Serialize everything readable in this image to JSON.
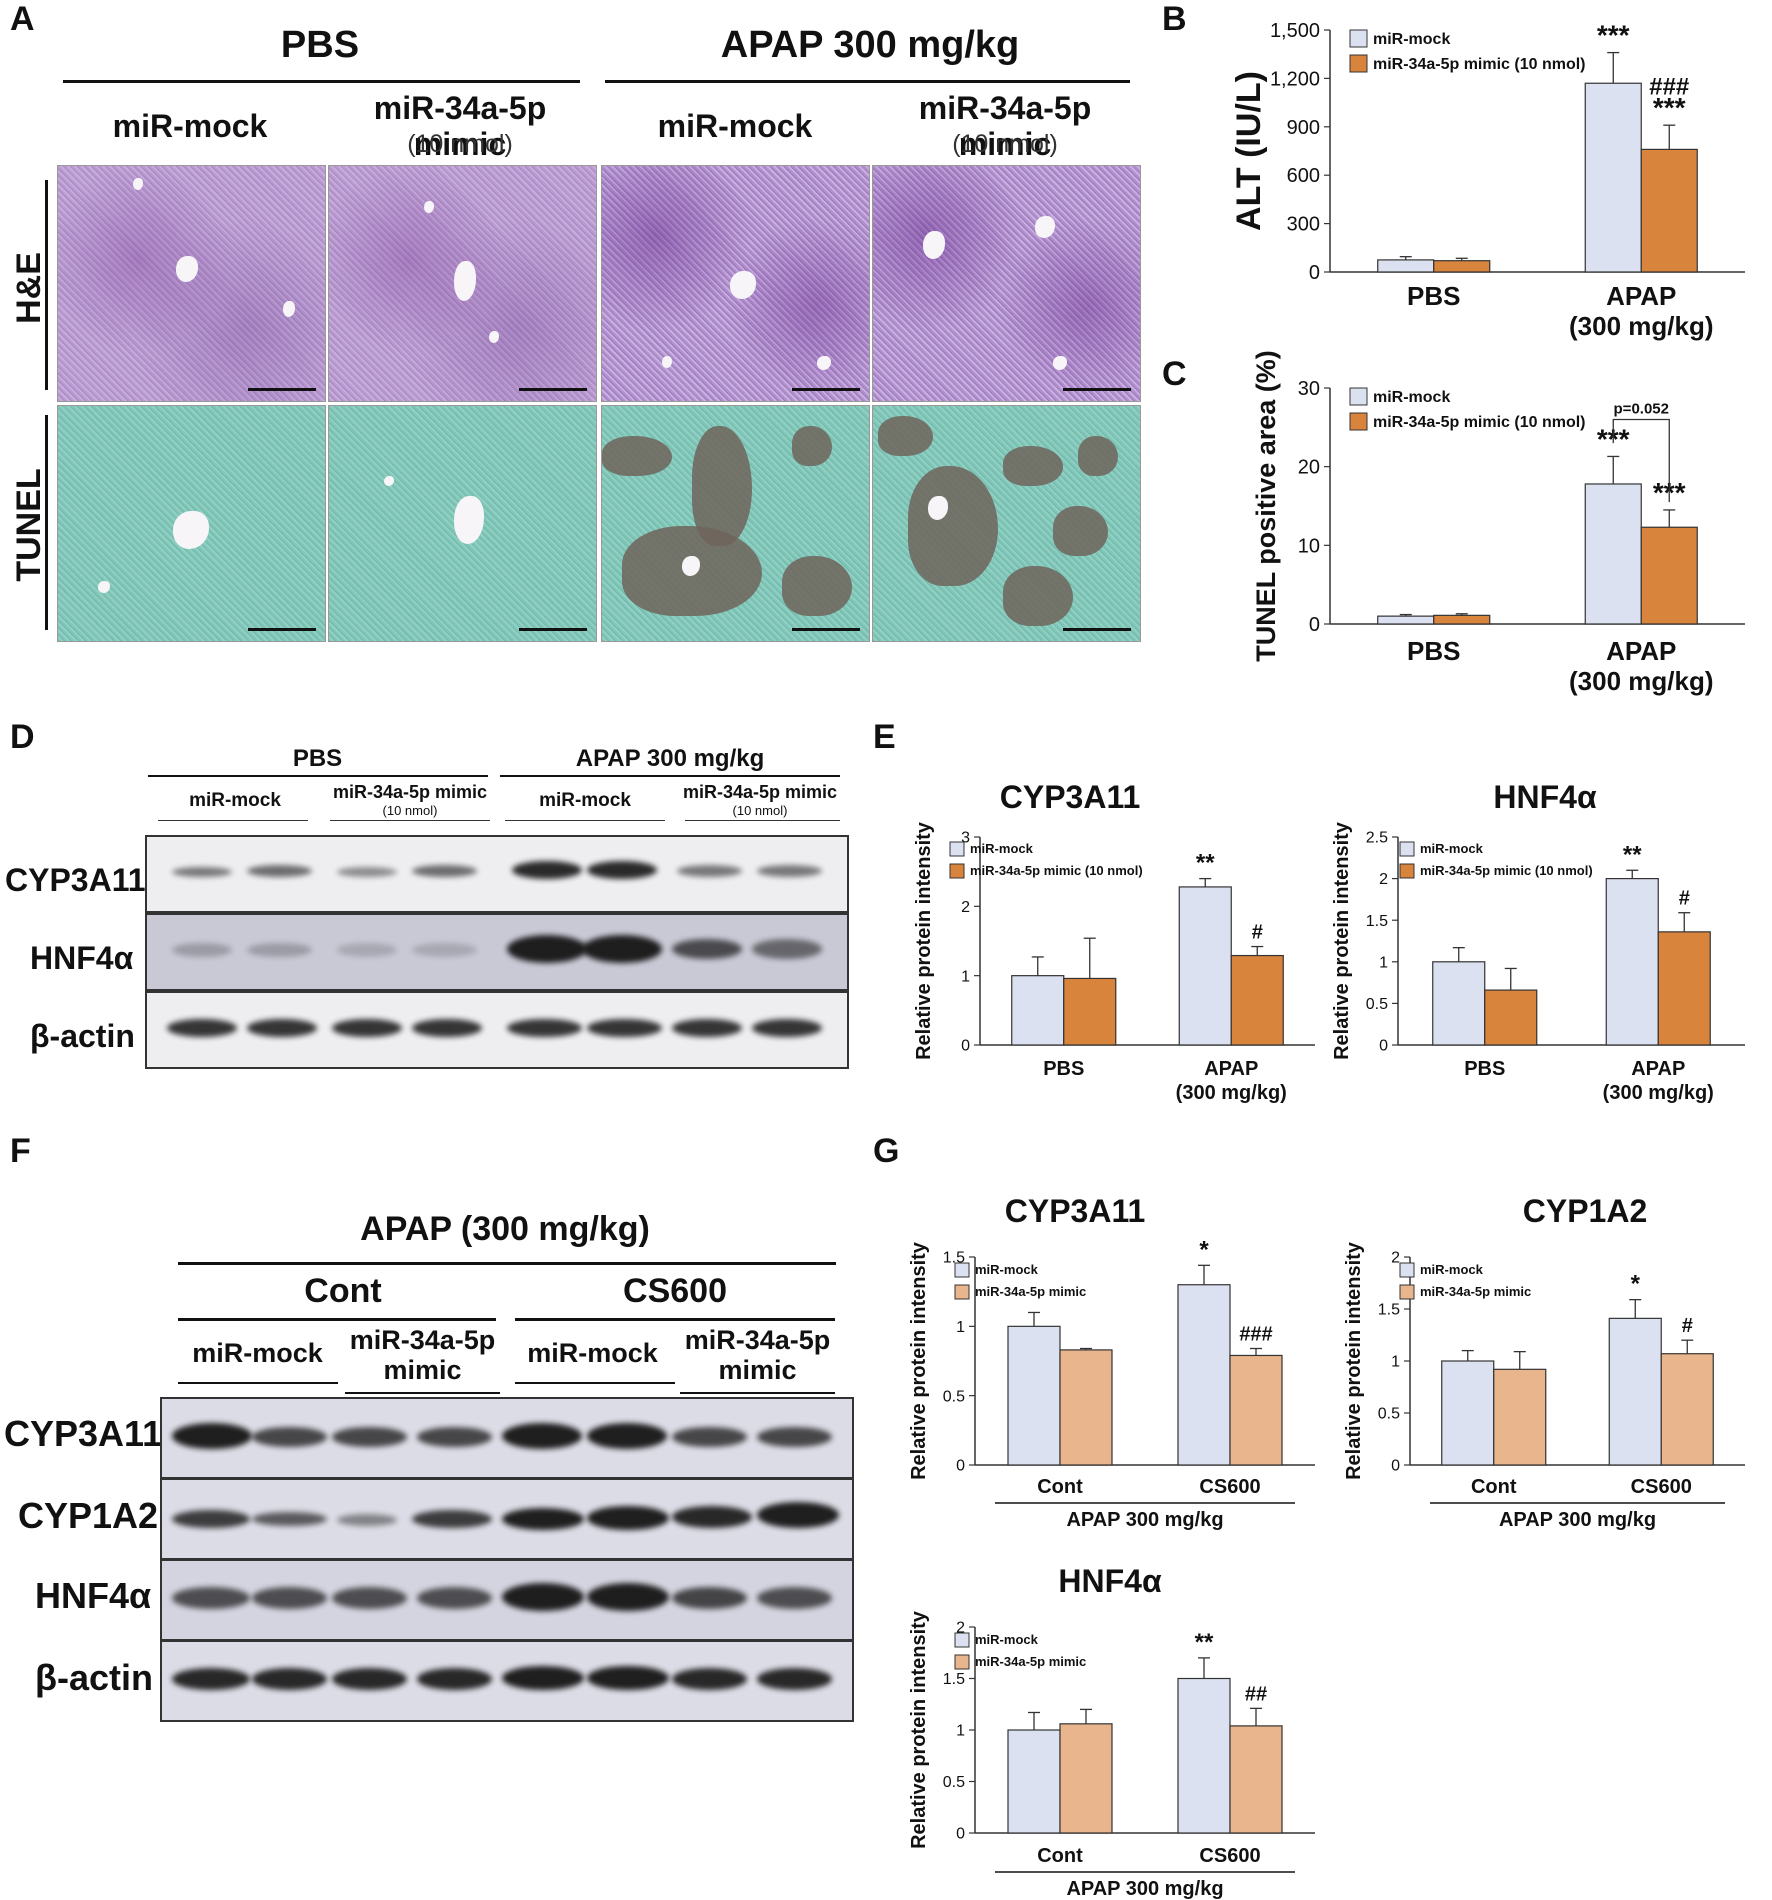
{
  "panel_labels": {
    "A": "A",
    "B": "B",
    "C": "C",
    "D": "D",
    "E": "E",
    "F": "F",
    "G": "G"
  },
  "histology": {
    "group_pbs": "PBS",
    "group_apap": "APAP 300 mg/kg",
    "col_mock": "miR-mock",
    "col_mimic": "miR-34a-5p mimic",
    "col_mimic_dose": "(10 nmol)",
    "row_he": "H&E",
    "row_tunel": "TUNEL"
  },
  "blot_D": {
    "group_pbs": "PBS",
    "group_apap": "APAP 300 mg/kg",
    "col_mock": "miR-mock",
    "col_mimic": "miR-34a-5p mimic",
    "col_mimic_dose": "(10 nmol)",
    "rows": [
      "CYP3A11",
      "HNF4α",
      "β-actin"
    ]
  },
  "blot_F": {
    "title": "APAP (300 mg/kg)",
    "group_cont": "Cont",
    "group_cs600": "CS600",
    "col_mock": "miR-mock",
    "col_mimic_l1": "miR-34a-5p",
    "col_mimic_l2": "mimic",
    "rows": [
      "CYP3A11",
      "CYP1A2",
      "HNF4α",
      "β-actin"
    ]
  },
  "colors": {
    "mock": "#dce1f2",
    "mimic_dark": "#d9843d",
    "mimic_light": "#e8b58c",
    "edge": "#333333"
  },
  "chart_data": [
    {
      "id": "B",
      "type": "bar",
      "title": "",
      "ylabel": "ALT (IU/L)",
      "ylim": [
        0,
        1500
      ],
      "yticks": [
        "0",
        "300",
        "600",
        "900",
        "1,200",
        "1,500"
      ],
      "ytick_values": [
        0,
        300,
        600,
        900,
        1200,
        1500
      ],
      "categories": [
        [
          "PBS"
        ],
        [
          "APAP",
          "(300 mg/kg)"
        ]
      ],
      "series": [
        {
          "name": "miR-mock",
          "values": [
            75,
            1170
          ],
          "errors": [
            20,
            190
          ],
          "annotations": [
            "",
            "***"
          ]
        },
        {
          "name": "miR-34a-5p mimic (10 nmol)",
          "values": [
            70,
            760
          ],
          "errors": [
            15,
            150
          ],
          "annotations": [
            "",
            "###\n***"
          ]
        }
      ],
      "bracket": ""
    },
    {
      "id": "C",
      "type": "bar",
      "title": "",
      "ylabel": "TUNEL positive area (%)",
      "ylim": [
        0,
        30
      ],
      "yticks": [
        "0",
        "10",
        "20",
        "30"
      ],
      "ytick_values": [
        0,
        10,
        20,
        30
      ],
      "categories": [
        [
          "PBS"
        ],
        [
          "APAP",
          "(300 mg/kg)"
        ]
      ],
      "series": [
        {
          "name": "miR-mock",
          "values": [
            1.0,
            17.8
          ],
          "errors": [
            0.2,
            3.5
          ],
          "annotations": [
            "",
            "***"
          ]
        },
        {
          "name": "miR-34a-5p mimic (10 nmol)",
          "values": [
            1.1,
            12.3
          ],
          "errors": [
            0.2,
            2.2
          ],
          "annotations": [
            "",
            "***"
          ]
        }
      ],
      "bracket": "p=0.052"
    },
    {
      "id": "E1",
      "type": "bar",
      "title": "CYP3A11",
      "ylabel": "Relative protein intensity",
      "ylim": [
        0,
        3
      ],
      "yticks": [
        "0",
        "1",
        "2",
        "3"
      ],
      "ytick_values": [
        0,
        1,
        2,
        3
      ],
      "categories": [
        [
          "PBS"
        ],
        [
          "APAP",
          "(300 mg/kg)"
        ]
      ],
      "series": [
        {
          "name": "miR-mock",
          "values": [
            1.0,
            2.28
          ],
          "errors": [
            0.27,
            0.12
          ],
          "annotations": [
            "",
            "**"
          ]
        },
        {
          "name": "miR-34a-5p mimic (10 nmol)",
          "values": [
            0.96,
            1.29
          ],
          "errors": [
            0.58,
            0.13
          ],
          "annotations": [
            "",
            "#"
          ]
        }
      ]
    },
    {
      "id": "E2",
      "type": "bar",
      "title": "HNF4α",
      "ylabel": "Relative protein intensity",
      "ylim": [
        0,
        2.5
      ],
      "yticks": [
        "0",
        "0.5",
        "1",
        "1.5",
        "2",
        "2.5"
      ],
      "ytick_values": [
        0,
        0.5,
        1,
        1.5,
        2,
        2.5
      ],
      "categories": [
        [
          "PBS"
        ],
        [
          "APAP",
          "(300 mg/kg)"
        ]
      ],
      "series": [
        {
          "name": "miR-mock",
          "values": [
            1.0,
            2.0
          ],
          "errors": [
            0.17,
            0.1
          ],
          "annotations": [
            "",
            "**"
          ]
        },
        {
          "name": "miR-34a-5p mimic (10 nmol)",
          "values": [
            0.66,
            1.36
          ],
          "errors": [
            0.26,
            0.23
          ],
          "annotations": [
            "",
            "#"
          ]
        }
      ]
    },
    {
      "id": "G1",
      "type": "bar",
      "title": "CYP3A11",
      "ylabel": "Relative protein intensity",
      "ylim": [
        0,
        1.5
      ],
      "yticks": [
        "0",
        "0.5",
        "1",
        "1.5"
      ],
      "ytick_values": [
        0,
        0.5,
        1,
        1.5
      ],
      "categories": [
        [
          "Cont"
        ],
        [
          "CS600"
        ]
      ],
      "xgroup": "APAP 300 mg/kg",
      "series": [
        {
          "name": "miR-mock",
          "values": [
            1.0,
            1.3
          ],
          "errors": [
            0.1,
            0.14
          ],
          "annotations": [
            "",
            "*"
          ]
        },
        {
          "name": "miR-34a-5p mimic",
          "values": [
            0.83,
            0.79
          ],
          "errors": [
            0.01,
            0.05
          ],
          "annotations": [
            "",
            "###"
          ]
        }
      ]
    },
    {
      "id": "G2",
      "type": "bar",
      "title": "CYP1A2",
      "ylabel": "Relative protein intensity",
      "ylim": [
        0,
        2
      ],
      "yticks": [
        "0",
        "0.5",
        "1",
        "1.5",
        "2"
      ],
      "ytick_values": [
        0,
        0.5,
        1,
        1.5,
        2
      ],
      "categories": [
        [
          "Cont"
        ],
        [
          "CS600"
        ]
      ],
      "xgroup": "APAP 300 mg/kg",
      "series": [
        {
          "name": "miR-mock",
          "values": [
            1.0,
            1.41
          ],
          "errors": [
            0.1,
            0.18
          ],
          "annotations": [
            "",
            "*"
          ]
        },
        {
          "name": "miR-34a-5p mimic",
          "values": [
            0.92,
            1.07
          ],
          "errors": [
            0.17,
            0.13
          ],
          "annotations": [
            "",
            "#"
          ]
        }
      ]
    },
    {
      "id": "G3",
      "type": "bar",
      "title": "HNF4α",
      "ylabel": "Relative protein intensity",
      "ylim": [
        0,
        2
      ],
      "yticks": [
        "0",
        "0.5",
        "1",
        "1.5",
        "2"
      ],
      "ytick_values": [
        0,
        0.5,
        1,
        1.5,
        2
      ],
      "categories": [
        [
          "Cont"
        ],
        [
          "CS600"
        ]
      ],
      "xgroup": "APAP 300 mg/kg",
      "series": [
        {
          "name": "miR-mock",
          "values": [
            1.0,
            1.5
          ],
          "errors": [
            0.17,
            0.2
          ],
          "annotations": [
            "",
            "**"
          ]
        },
        {
          "name": "miR-34a-5p mimic",
          "values": [
            1.06,
            1.04
          ],
          "errors": [
            0.14,
            0.17
          ],
          "annotations": [
            "",
            "##"
          ]
        }
      ]
    }
  ]
}
